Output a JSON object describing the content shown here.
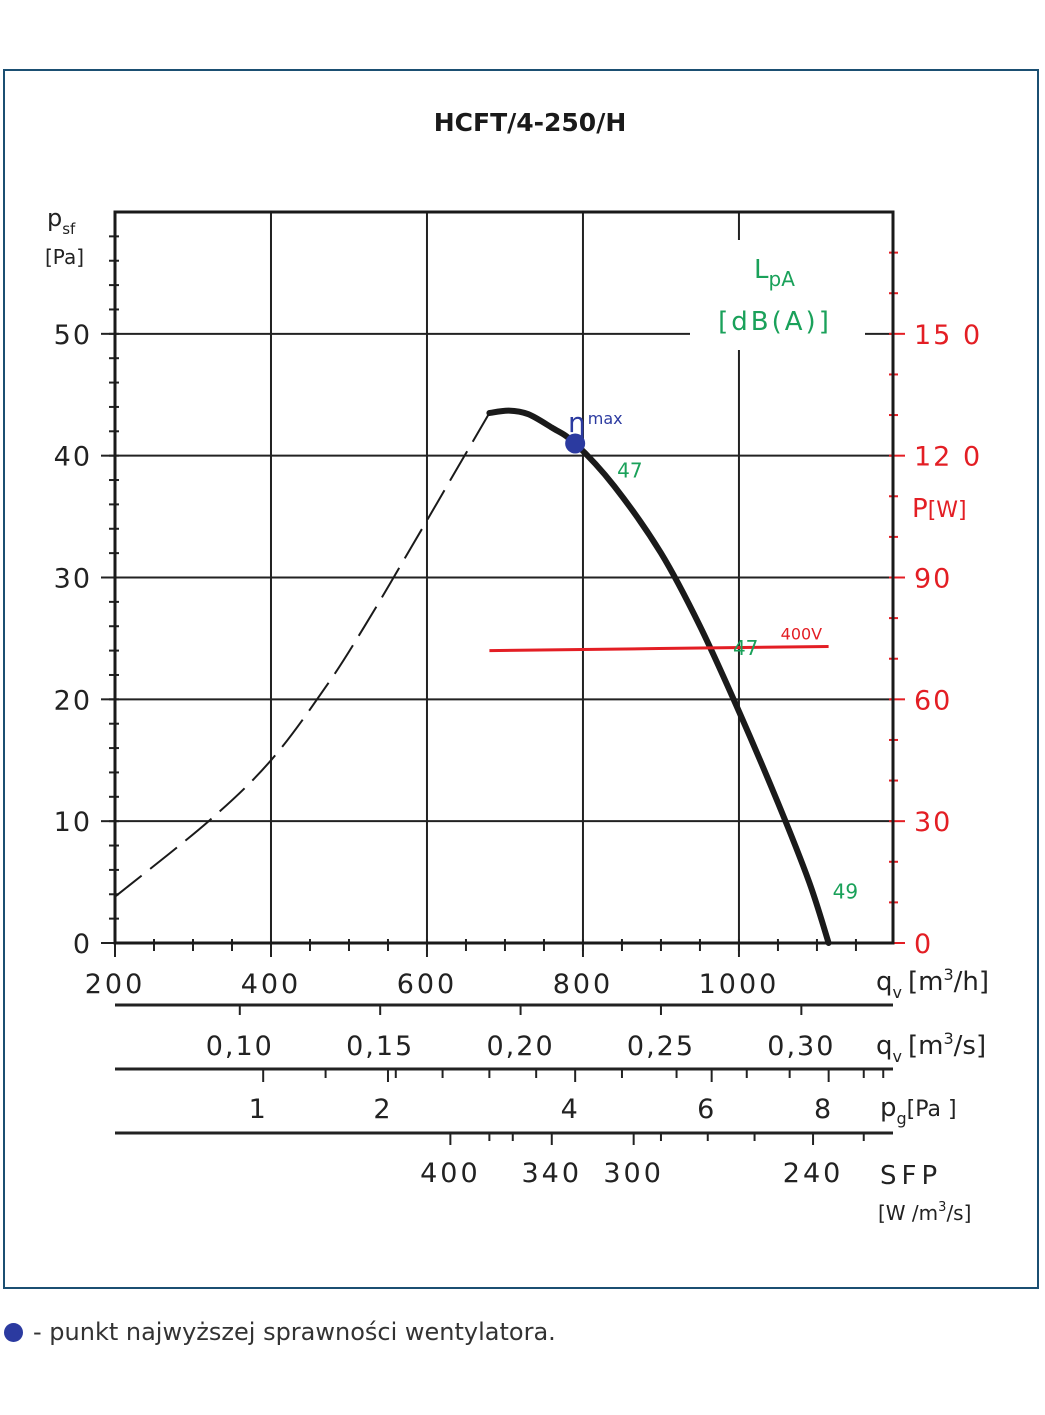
{
  "colors": {
    "frame": "#1b4f72",
    "curve": "#1a1a1a",
    "power": "#e31e24",
    "sound": "#1aa15a",
    "efficiency": "#2b3aa0",
    "grid": "#222222"
  },
  "legend": {
    "text": "- punkt najwyższej sprawności wentylatora."
  },
  "chart_data": {
    "type": "line",
    "title": "HCFT/4-250/H",
    "y_axis": {
      "label": "p",
      "label_sub": "sf",
      "unit": "[Pa]",
      "range": [
        0,
        60
      ],
      "ticks": [
        "0",
        "10",
        "20",
        "30",
        "40",
        "50"
      ],
      "tick_values": [
        0,
        10,
        20,
        30,
        40,
        50
      ]
    },
    "x_axis": {
      "label": "q",
      "label_sub": "v",
      "unit_prefix": "[m",
      "unit_sup": "3",
      "unit_suffix": "/h]",
      "range": [
        200,
        1200
      ],
      "ticks": [
        "200",
        "400",
        "600",
        "800",
        "1000"
      ],
      "tick_values": [
        200,
        400,
        600,
        800,
        1000
      ]
    },
    "x_axis_m3s": {
      "label": "q",
      "label_sub": "v",
      "unit_prefix": "[m",
      "unit_sup": "3",
      "unit_suffix": "/s]",
      "ticks": [
        "0,10",
        "0,15",
        "0,20",
        "0,25",
        "0,30"
      ],
      "tick_values": [
        0.1,
        0.15,
        0.2,
        0.25,
        0.3
      ]
    },
    "pg_axis": {
      "label": "p",
      "label_sub": "g",
      "unit": "[Pa ]",
      "ticks": [
        "1",
        "2",
        "4",
        "6",
        "8"
      ],
      "tick_at_qv_m3h": [
        390,
        550,
        790,
        965,
        1115
      ]
    },
    "sfp_axis": {
      "label": "SFP",
      "unit_prefix": "[W /m",
      "unit_sup": "3",
      "unit_suffix": "/s]",
      "ticks": [
        "400",
        "340",
        "300",
        "240"
      ],
      "tick_at_qv_m3h": [
        630,
        760,
        865,
        1095
      ]
    },
    "power_axis": {
      "label": "P",
      "unit": "[W]",
      "range": [
        0,
        180
      ],
      "ticks": [
        "0",
        "30",
        "60",
        "90",
        "12 0",
        "15 0"
      ],
      "tick_values": [
        0,
        30,
        60,
        90,
        120,
        150
      ]
    },
    "sound_label": {
      "label": "L",
      "label_sub": "pA",
      "unit": "[dB(A)]"
    },
    "series": [
      {
        "name": "",
        "style": "dashed",
        "points": [
          [
            200,
            3.8
          ],
          [
            320,
            10
          ],
          [
            400,
            15
          ],
          [
            470,
            21
          ],
          [
            520,
            26
          ],
          [
            580,
            32.5
          ],
          [
            630,
            38
          ],
          [
            680,
            43.5
          ]
        ]
      },
      {
        "name": "",
        "style": "solid",
        "points": [
          [
            680,
            43.5
          ],
          [
            705,
            43.7
          ],
          [
            730,
            43.4
          ],
          [
            760,
            42.3
          ],
          [
            790,
            41
          ],
          [
            840,
            37.5
          ],
          [
            900,
            32
          ],
          [
            950,
            26
          ],
          [
            1000,
            19
          ],
          [
            1050,
            11.5
          ],
          [
            1090,
            5
          ],
          [
            1115,
            0
          ]
        ]
      },
      {
        "name": "400V",
        "axis": "power",
        "style": "solid",
        "points": [
          [
            680,
            72
          ],
          [
            1115,
            73
          ]
        ]
      }
    ],
    "efficiency_point": {
      "label": "η",
      "label_sup": "max",
      "x": 790,
      "y": 41
    },
    "sound_labels": [
      {
        "text": "47",
        "x": 790,
        "y": 41
      },
      {
        "text": "47",
        "x": 1000,
        "y": 21
      },
      {
        "text": "49",
        "x": 1115,
        "y": 2
      }
    ]
  }
}
